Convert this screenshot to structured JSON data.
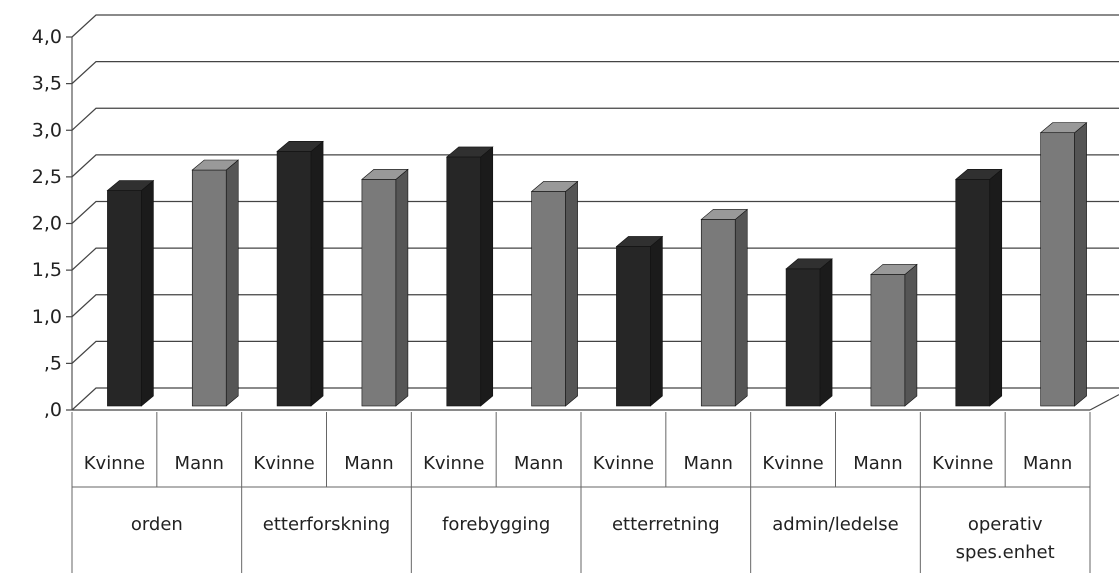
{
  "chart_data": {
    "type": "bar",
    "groups": [
      "orden",
      "etterforskning",
      "forebygging",
      "etterretning",
      "admin/ledelse",
      "operativ spes.enhet"
    ],
    "subcategories": [
      "Kvinne",
      "Mann"
    ],
    "series": [
      {
        "name": "Kvinne",
        "values": [
          2.3,
          2.72,
          2.66,
          1.7,
          1.46,
          2.42
        ]
      },
      {
        "name": "Mann",
        "values": [
          2.52,
          2.42,
          2.29,
          1.99,
          1.4,
          2.92
        ]
      }
    ],
    "y_ticks": [
      ",0",
      ",5",
      "1,0",
      "1,5",
      "2,0",
      "2,5",
      "3,0",
      "3,5",
      "4,0"
    ],
    "ylim": [
      0,
      4
    ],
    "style": "3d-column",
    "grid": true,
    "colors": {
      "Kvinne": "#262626",
      "Mann": "#7a7a7a"
    }
  }
}
